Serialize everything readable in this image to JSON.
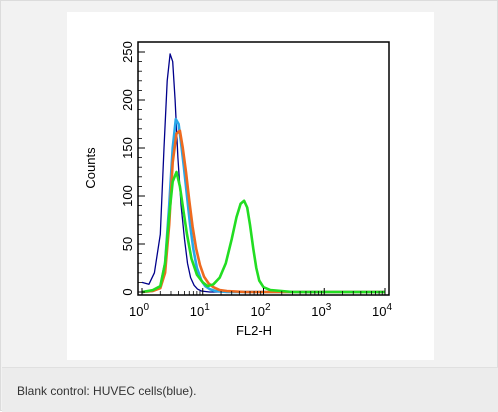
{
  "caption": "Blank control: HUVEC cells(blue).",
  "chart_data": {
    "type": "line",
    "title": "",
    "xlabel": "FL2-H",
    "ylabel": "Counts",
    "xscale": "log",
    "xlim": [
      1,
      10000
    ],
    "ylim": [
      0,
      256
    ],
    "x_ticks": [
      {
        "base": "10",
        "exp": "0",
        "value": 1
      },
      {
        "base": "10",
        "exp": "1",
        "value": 10
      },
      {
        "base": "10",
        "exp": "2",
        "value": 100
      },
      {
        "base": "10",
        "exp": "3",
        "value": 1000
      },
      {
        "base": "10",
        "exp": "4",
        "value": 10000
      }
    ],
    "y_ticks": [
      "0",
      "50",
      "100",
      "150",
      "200",
      "250"
    ],
    "grid": false,
    "series": [
      {
        "color": "#00008b",
        "x": [
          1,
          1.3,
          1.6,
          2.0,
          2.3,
          2.6,
          2.9,
          3.2,
          3.5,
          3.9,
          4.4,
          5.0,
          5.6,
          6.3,
          7.2,
          8.2,
          9.5,
          11,
          13,
          16,
          25,
          50,
          200,
          10000
        ],
        "y": [
          10,
          8,
          20,
          60,
          150,
          220,
          248,
          240,
          200,
          140,
          90,
          55,
          30,
          15,
          7,
          3,
          1,
          0.5,
          0,
          0,
          0,
          0,
          0,
          0
        ]
      },
      {
        "color": "#29a7e8",
        "x": [
          1,
          1.5,
          2.0,
          2.4,
          2.8,
          3.2,
          3.6,
          4.0,
          4.4,
          4.9,
          5.5,
          6.2,
          7.0,
          8.0,
          9.5,
          11,
          13,
          16,
          25,
          50,
          10000
        ],
        "y": [
          0,
          1,
          5,
          30,
          90,
          150,
          180,
          175,
          155,
          130,
          100,
          70,
          45,
          25,
          12,
          6,
          3,
          1,
          0,
          0,
          0
        ]
      },
      {
        "color": "#ee6a1f",
        "x": [
          1,
          1.5,
          2.0,
          2.4,
          2.8,
          3.2,
          3.7,
          4.2,
          4.7,
          5.3,
          6.0,
          6.8,
          7.8,
          9.0,
          10.5,
          12.5,
          15,
          19,
          25,
          50,
          10000
        ],
        "y": [
          0,
          1,
          4,
          20,
          70,
          135,
          165,
          168,
          150,
          125,
          95,
          68,
          45,
          28,
          16,
          9,
          5,
          2,
          1,
          0,
          0
        ]
      },
      {
        "color": "#22dd22",
        "x": [
          1,
          1.5,
          2.0,
          2.4,
          2.8,
          3.2,
          3.7,
          4.2,
          4.8,
          5.5,
          6.5,
          8,
          10,
          12,
          15,
          19,
          24,
          30,
          36,
          42,
          48,
          54,
          60,
          68,
          76,
          85,
          100,
          130,
          200,
          300,
          10000
        ],
        "y": [
          0,
          2,
          6,
          30,
          80,
          115,
          125,
          110,
          85,
          60,
          35,
          18,
          10,
          6,
          8,
          15,
          30,
          55,
          78,
          92,
          95,
          88,
          70,
          45,
          25,
          12,
          5,
          2,
          1,
          0,
          0
        ]
      }
    ]
  }
}
